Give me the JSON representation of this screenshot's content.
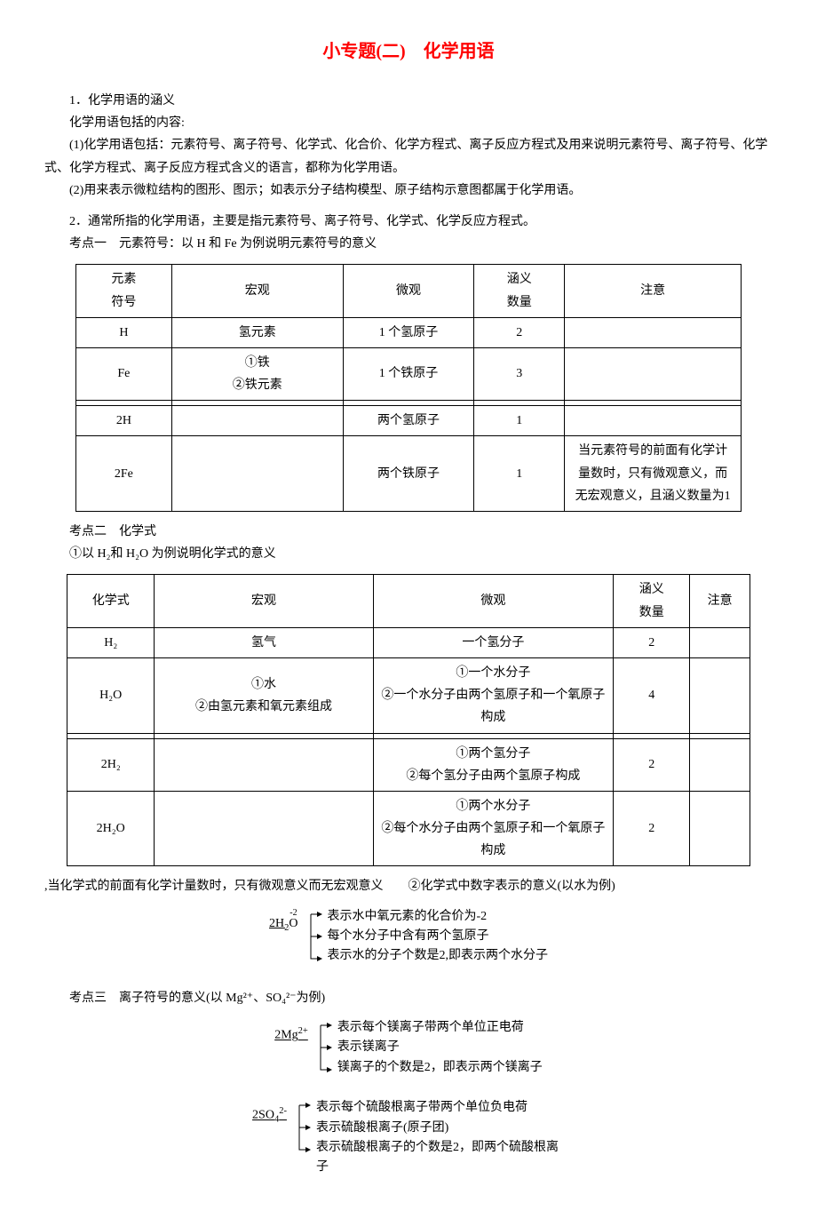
{
  "title": "小专题(二)　化学用语",
  "intro": {
    "h1": "1．化学用语的涵义",
    "h1_sub": "化学用语包括的内容:",
    "p1": "(1)化学用语包括：元素符号、离子符号、化学式、化合价、化学方程式、离子反应方程式及用来说明元素符号、离子符号、化学式、化学方程式、离子反应方程式含义的语言，都称为化学用语。",
    "p2": "(2)用来表示微粒结构的图形、图示；如表示分子结构模型、原子结构示意图都属于化学用语。",
    "h2": "2．通常所指的化学用语，主要是指元素符号、离子符号、化学式、化学反应方程式。",
    "k1": "考点一　元素符号：以 H 和 Fe 为例说明元素符号的意义"
  },
  "table1": {
    "headers": [
      "元素\n符号",
      "宏观",
      "微观",
      "涵义\n数量",
      "注意"
    ],
    "rows": [
      [
        "H",
        "氢元素",
        "1 个氢原子",
        "2",
        ""
      ],
      [
        "Fe",
        "①铁\n②铁元素",
        "1 个铁原子",
        "3",
        ""
      ],
      [
        "",
        "",
        "",
        "",
        ""
      ],
      [
        "2H",
        "",
        "两个氢原子",
        "1",
        ""
      ],
      [
        "2Fe",
        "",
        "两个铁原子",
        "1",
        "当元素符号的前面有化学计量数时，只有微观意义，而无宏观意义，且涵义数量为1"
      ]
    ]
  },
  "mid": {
    "k2": "考点二　化学式",
    "k2_sub": "①以 H₂和 H₂O 为例说明化学式的意义"
  },
  "table2": {
    "headers": [
      "化学式",
      "宏观",
      "微观",
      "涵义\n数量",
      "注意"
    ],
    "rows": [
      [
        "H₂",
        "氢气",
        "一个氢分子",
        "2",
        ""
      ],
      [
        "H₂O",
        "①水\n②由氢元素和氧元素组成",
        "①一个水分子\n②一个水分子由两个氢原子和一个氧原子构成",
        "4",
        ""
      ],
      [
        "",
        "",
        "",
        "",
        ""
      ],
      [
        "2H₂",
        "",
        "①两个氢分子\n②每个氢分子由两个氢原子构成",
        "2",
        ""
      ],
      [
        "2H₂O",
        "",
        "①两个水分子\n②每个水分子由两个氢原子和一个氧原子构成",
        "2",
        ""
      ]
    ]
  },
  "after_t2": {
    "note": ",当化学式的前面有化学计量数时，只有微观意义而无宏观意义　　②化学式中数字表示的意义(以水为例)"
  },
  "diagram1": {
    "label_prefix": "2H",
    "label_sub": "2",
    "over": "-2",
    "label_suffix": "O",
    "lines": [
      "表示水中氧元素的化合价为-2",
      "每个水分子中含有两个氢原子",
      "表示水的分子个数是2,即表示两个水分子"
    ]
  },
  "k3": "考点三　离子符号的意义(以 Mg²⁺、SO₄²⁻为例)",
  "diagram2": {
    "label": "2Mg",
    "label_sup": "2+",
    "lines": [
      "表示每个镁离子带两个单位正电荷",
      "表示镁离子",
      "镁离子的个数是2，即表示两个镁离子"
    ]
  },
  "diagram3": {
    "label": "2SO",
    "label_sub": "4",
    "label_sup": "2-",
    "lines": [
      "表示每个硫酸根离子带两个单位负电荷",
      "表示硫酸根离子(原子团)",
      "表示硫酸根离子的个数是2，即两个硫酸根离子"
    ]
  }
}
